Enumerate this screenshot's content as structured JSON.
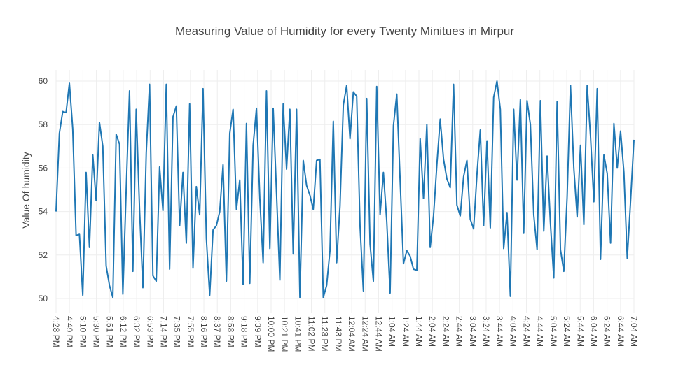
{
  "chart_data": {
    "type": "line",
    "title": "Measuring Value of Humidity for every Twenty Minitues in Mirpur",
    "xlabel": "",
    "ylabel": "Value Of humidity",
    "ylim": [
      50,
      60
    ],
    "y_ticks": [
      50,
      52,
      54,
      56,
      58,
      60
    ],
    "x_tick_labels": [
      "4:28 PM",
      "4:49 PM",
      "5:10 PM",
      "5:30 PM",
      "5:51 PM",
      "6:12 PM",
      "6:32 PM",
      "6:53 PM",
      "7:14 PM",
      "7:35 PM",
      "7:55 PM",
      "8:16 PM",
      "8:37 PM",
      "8:58 PM",
      "9:18 PM",
      "9:39 PM",
      "10:00 PM",
      "10:21 PM",
      "10:41 PM",
      "11:02 PM",
      "11:23 PM",
      "11:43 PM",
      "12:04 AM",
      "12:24 AM",
      "12:44 AM",
      "1:04 AM",
      "1:24 AM",
      "1:44 AM",
      "2:04 AM",
      "2:24 AM",
      "2:44 AM",
      "3:04 AM",
      "3:24 AM",
      "3:44 AM",
      "4:04 AM",
      "4:24 AM",
      "4:44 AM",
      "5:04 AM",
      "5:24 AM",
      "5:44 AM",
      "6:04 AM",
      "6:24 AM",
      "6:44 AM",
      "7:04 AM"
    ],
    "grid": true,
    "line_color": "#1f77b4",
    "series": [
      {
        "values": [
          54.0,
          57.6,
          58.6,
          58.55,
          59.9,
          57.8,
          52.9,
          52.95,
          50.15,
          55.8,
          52.35,
          56.6,
          54.5,
          58.1,
          57.0,
          51.5,
          50.6,
          50.05,
          57.55,
          57.1,
          50.2,
          55.0,
          59.55,
          51.25,
          58.7,
          54.1,
          50.5,
          56.7,
          59.85,
          51.05,
          50.8,
          56.05,
          54.05,
          59.85,
          51.35,
          58.35,
          58.85,
          53.35,
          55.8,
          52.55,
          58.95,
          51.4,
          55.15,
          53.85,
          59.65,
          52.75,
          50.15,
          53.15,
          53.35,
          54.0,
          56.15,
          50.8,
          57.6,
          58.7,
          54.1,
          55.45,
          50.65,
          58.05,
          50.7,
          57.05,
          58.75,
          54.6,
          51.65,
          59.55,
          52.3,
          58.75,
          54.85,
          50.85,
          58.95,
          55.95,
          58.7,
          52.05,
          58.7,
          50.05,
          56.35,
          55.2,
          54.75,
          54.1,
          56.35,
          56.4,
          50.05,
          50.6,
          52.2,
          58.15,
          51.65,
          54.25,
          58.9,
          59.8,
          57.35,
          59.5,
          59.3,
          53.35,
          50.35,
          59.2,
          52.5,
          50.8,
          59.75,
          53.85,
          55.8,
          53.55,
          50.25,
          57.95,
          59.4,
          55.45,
          51.6,
          52.2,
          51.95,
          51.35,
          51.3,
          57.35,
          54.6,
          58.0,
          52.35,
          53.8,
          56.15,
          58.25,
          56.4,
          55.5,
          55.1,
          59.85,
          54.3,
          53.8,
          55.6,
          56.35,
          53.65,
          53.2,
          55.7,
          57.75,
          53.35,
          57.25,
          53.25,
          59.25,
          60.0,
          58.7,
          52.3,
          53.95,
          50.1,
          58.7,
          55.45,
          59.15,
          53.0,
          59.1,
          58.0,
          53.85,
          52.25,
          59.1,
          53.1,
          56.55,
          53.45,
          50.95,
          59.05,
          52.25,
          51.25,
          54.7,
          59.8,
          56.0,
          53.75,
          57.05,
          53.4,
          59.8,
          57.45,
          54.45,
          59.65,
          51.8,
          56.6,
          55.75,
          52.55,
          58.05,
          56.0,
          57.7,
          55.8,
          51.85,
          54.5,
          57.3
        ]
      }
    ]
  }
}
